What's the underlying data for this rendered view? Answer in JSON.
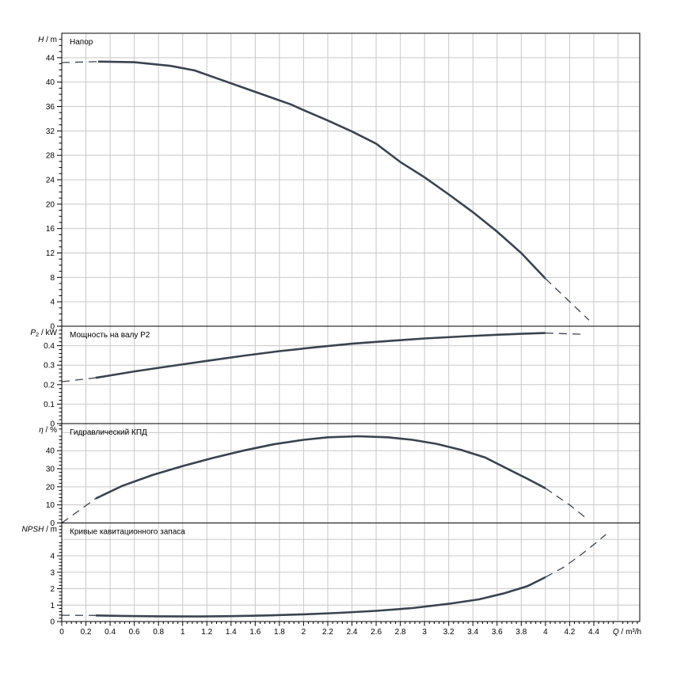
{
  "colors": {
    "background": "#ffffff",
    "curve": "#3a434f",
    "grid": "#c8c8c8",
    "axis": "#000000",
    "text": "#000000"
  },
  "x_axis": {
    "caption": {
      "var": "Q",
      "unit": "m³/h"
    },
    "min": 0,
    "max": 4.78,
    "major_step": 0.2,
    "minor_step": 0.04,
    "ticks": [
      [
        0,
        "0"
      ],
      [
        0.2,
        "0.2"
      ],
      [
        0.4,
        "0.4"
      ],
      [
        0.6,
        "0.6"
      ],
      [
        0.8,
        "0.8"
      ],
      [
        1,
        "1"
      ],
      [
        1.2,
        "1.2"
      ],
      [
        1.4,
        "1.4"
      ],
      [
        1.6,
        "1.6"
      ],
      [
        1.8,
        "1.8"
      ],
      [
        2,
        "2"
      ],
      [
        2.2,
        "2.2"
      ],
      [
        2.4,
        "2.4"
      ],
      [
        2.6,
        "2.6"
      ],
      [
        2.8,
        "2.8"
      ],
      [
        3,
        "3"
      ],
      [
        3.2,
        "3.2"
      ],
      [
        3.4,
        "3.4"
      ],
      [
        3.6,
        "3.6"
      ],
      [
        3.8,
        "3.8"
      ],
      [
        4,
        "4"
      ],
      [
        4.2,
        "4.2"
      ],
      [
        4.4,
        "4.4"
      ]
    ]
  },
  "chart_data": [
    {
      "type": "line",
      "id": "head",
      "title": "Напор",
      "caption": {
        "var": "H",
        "unit": "m"
      },
      "ymin": 0,
      "ymax": 48,
      "major_step": 4,
      "minor_step": 1,
      "ticks": [
        [
          0,
          "0"
        ],
        [
          4,
          "4"
        ],
        [
          8,
          "8"
        ],
        [
          12,
          "12"
        ],
        [
          16,
          "16"
        ],
        [
          20,
          "20"
        ],
        [
          24,
          "24"
        ],
        [
          28,
          "28"
        ],
        [
          32,
          "32"
        ],
        [
          36,
          "36"
        ],
        [
          40,
          "40"
        ],
        [
          44,
          "44"
        ]
      ],
      "series": [
        {
          "name": "head-dashed-left",
          "style": "dashed",
          "points": [
            [
              0,
              43.2
            ],
            [
              0.3,
              43.35
            ]
          ]
        },
        {
          "name": "head-solid",
          "style": "solid",
          "points": [
            [
              0.3,
              43.35
            ],
            [
              0.6,
              43.25
            ],
            [
              0.9,
              42.65
            ],
            [
              1.1,
              41.9
            ],
            [
              1.3,
              40.5
            ],
            [
              1.5,
              39.1
            ],
            [
              1.7,
              37.7
            ],
            [
              1.9,
              36.3
            ],
            [
              2.0,
              35.4
            ],
            [
              2.2,
              33.7
            ],
            [
              2.4,
              31.9
            ],
            [
              2.6,
              29.9
            ],
            [
              2.8,
              26.9
            ],
            [
              3.0,
              24.4
            ],
            [
              3.2,
              21.6
            ],
            [
              3.4,
              18.7
            ],
            [
              3.6,
              15.5
            ],
            [
              3.8,
              12.0
            ],
            [
              4.0,
              7.8
            ]
          ]
        },
        {
          "name": "head-dashed-right",
          "style": "dashed",
          "points": [
            [
              4.0,
              7.8
            ],
            [
              4.36,
              1.0
            ]
          ]
        }
      ]
    },
    {
      "type": "line",
      "id": "power",
      "title": "Мощность на валу P2",
      "caption": {
        "var": "P",
        "sub": "2",
        "unit": "kW"
      },
      "ymin": 0,
      "ymax": 0.5,
      "major_step": 0.1,
      "minor_step": 0.02,
      "ticks": [
        [
          0,
          "0"
        ],
        [
          0.1,
          "0.1"
        ],
        [
          0.2,
          "0.2"
        ],
        [
          0.3,
          "0.3"
        ],
        [
          0.4,
          "0.4"
        ]
      ],
      "series": [
        {
          "name": "power-dashed-left",
          "style": "dashed",
          "points": [
            [
              0,
              0.215
            ],
            [
              0.28,
              0.235
            ]
          ]
        },
        {
          "name": "power-solid",
          "style": "solid",
          "points": [
            [
              0.28,
              0.235
            ],
            [
              0.6,
              0.268
            ],
            [
              0.9,
              0.295
            ],
            [
              1.2,
              0.322
            ],
            [
              1.5,
              0.348
            ],
            [
              1.8,
              0.372
            ],
            [
              2.1,
              0.392
            ],
            [
              2.4,
              0.41
            ],
            [
              2.7,
              0.424
            ],
            [
              3.0,
              0.437
            ],
            [
              3.3,
              0.447
            ],
            [
              3.6,
              0.456
            ],
            [
              3.8,
              0.461
            ],
            [
              4.0,
              0.465
            ]
          ]
        },
        {
          "name": "power-dashed-right",
          "style": "dashed",
          "points": [
            [
              4.0,
              0.465
            ],
            [
              4.32,
              0.458
            ]
          ]
        }
      ]
    },
    {
      "type": "line",
      "id": "efficiency",
      "title": "Гидравлический КПД",
      "caption": {
        "var": "η",
        "unit": "%"
      },
      "ymin": 0,
      "ymax": 55,
      "major_step": 10,
      "minor_step": 2,
      "ticks": [
        [
          0,
          "0"
        ],
        [
          10,
          "10"
        ],
        [
          20,
          "20"
        ],
        [
          30,
          "30"
        ],
        [
          40,
          "40"
        ]
      ],
      "series": [
        {
          "name": "efficiency-dashed-left",
          "style": "dashed",
          "points": [
            [
              0,
              0
            ],
            [
              0.28,
              13.5
            ]
          ]
        },
        {
          "name": "efficiency-solid",
          "style": "solid",
          "points": [
            [
              0.28,
              13.5
            ],
            [
              0.5,
              20.5
            ],
            [
              0.75,
              26.5
            ],
            [
              1.0,
              31.5
            ],
            [
              1.25,
              36
            ],
            [
              1.5,
              40
            ],
            [
              1.75,
              43.5
            ],
            [
              2.0,
              46
            ],
            [
              2.2,
              47.4
            ],
            [
              2.45,
              48
            ],
            [
              2.7,
              47.4
            ],
            [
              2.9,
              46
            ],
            [
              3.1,
              43.8
            ],
            [
              3.3,
              40.5
            ],
            [
              3.5,
              36.3
            ],
            [
              3.7,
              29.5
            ],
            [
              3.85,
              24.5
            ],
            [
              4.0,
              19.2
            ]
          ]
        },
        {
          "name": "efficiency-dashed-right",
          "style": "dashed",
          "points": [
            [
              4.0,
              19.2
            ],
            [
              4.2,
              10
            ],
            [
              4.35,
              2
            ]
          ]
        }
      ]
    },
    {
      "type": "line",
      "id": "npsh",
      "title": "Кривые кавитационного запаса",
      "caption": {
        "var": "NPSH",
        "unit": "m"
      },
      "ymin": 0,
      "ymax": 6,
      "major_step": 1,
      "minor_step": 0.2,
      "ticks": [
        [
          0,
          "0"
        ],
        [
          1,
          "1"
        ],
        [
          2,
          "2"
        ],
        [
          3,
          "3"
        ],
        [
          4,
          "4"
        ]
      ],
      "series": [
        {
          "name": "npsh-dashed-left",
          "style": "dashed",
          "points": [
            [
              0,
              0.38
            ],
            [
              0.28,
              0.37
            ]
          ]
        },
        {
          "name": "npsh-solid",
          "style": "solid",
          "points": [
            [
              0.28,
              0.37
            ],
            [
              0.5,
              0.34
            ],
            [
              0.8,
              0.32
            ],
            [
              1.1,
              0.31
            ],
            [
              1.4,
              0.33
            ],
            [
              1.7,
              0.37
            ],
            [
              2.0,
              0.44
            ],
            [
              2.3,
              0.53
            ],
            [
              2.6,
              0.65
            ],
            [
              2.9,
              0.82
            ],
            [
              3.2,
              1.08
            ],
            [
              3.45,
              1.35
            ],
            [
              3.65,
              1.7
            ],
            [
              3.85,
              2.15
            ],
            [
              4.0,
              2.7
            ]
          ]
        },
        {
          "name": "npsh-dashed-right",
          "style": "dashed",
          "points": [
            [
              4.0,
              2.7
            ],
            [
              4.15,
              3.3
            ],
            [
              4.3,
              4.1
            ],
            [
              4.42,
              4.8
            ],
            [
              4.5,
              5.3
            ]
          ]
        }
      ]
    }
  ]
}
